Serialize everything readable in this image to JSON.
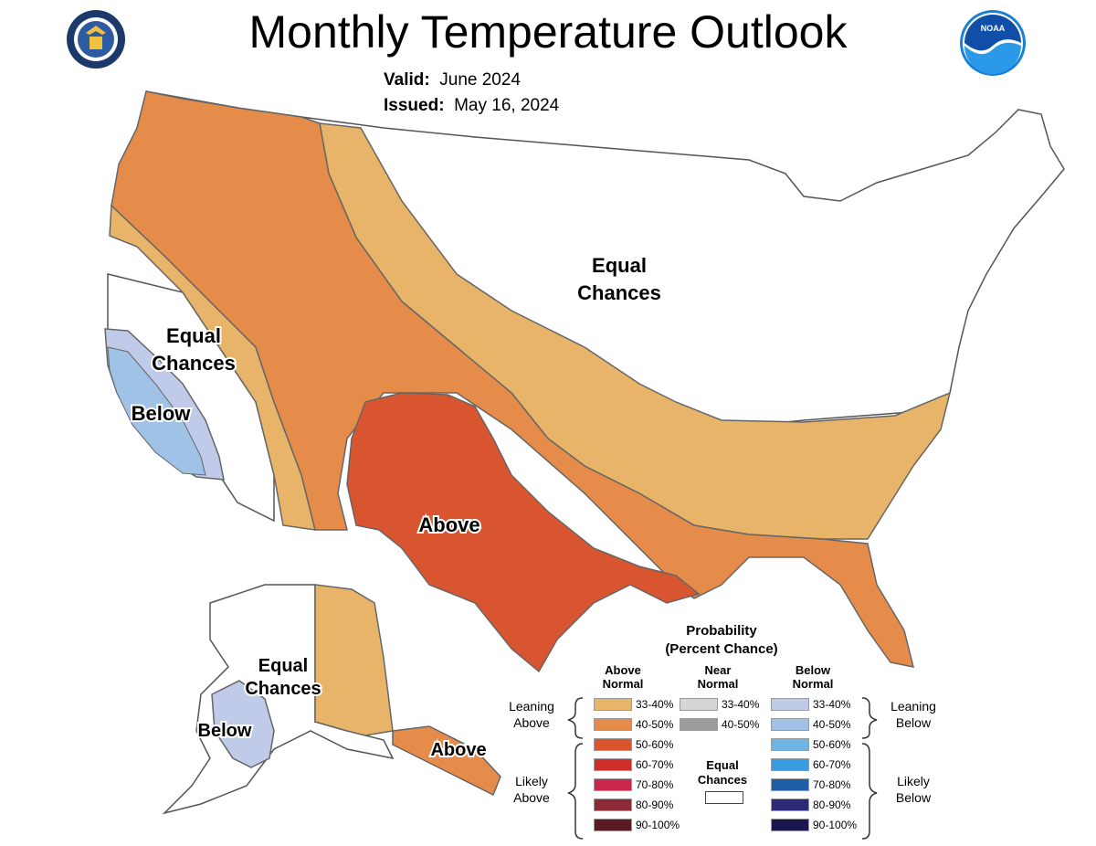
{
  "header": {
    "title": "Monthly Temperature Outlook",
    "valid_label": "Valid:",
    "valid_value": "June 2024",
    "issued_label": "Issued:",
    "issued_value": "May 16, 2024",
    "left_logo_icon": "department-of-commerce-seal-icon",
    "right_logo_icon": "noaa-logo-icon",
    "right_logo_text": "NOAA"
  },
  "map": {
    "labels": {
      "equal_chances_central_1": "Equal",
      "equal_chances_central_2": "Chances",
      "equal_chances_west_1": "Equal",
      "equal_chances_west_2": "Chances",
      "below_west": "Below",
      "above_south": "Above",
      "equal_chances_alaska_1": "Equal",
      "equal_chances_alaska_2": "Chances",
      "below_alaska": "Below",
      "above_alaska": "Above"
    },
    "colors": {
      "above_33_40": "#e8b46a",
      "above_40_50": "#e58c4a",
      "above_50_60": "#d9552f",
      "below_33_40": "#bfcbe8",
      "below_40_50": "#9fc2e6",
      "equal_chances": "#ffffff"
    }
  },
  "legend": {
    "title_1": "Probability",
    "title_2": "(Percent Chance)",
    "above_header_1": "Above",
    "above_header_2": "Normal",
    "near_header_1": "Near",
    "near_header_2": "Normal",
    "below_header_1": "Below",
    "below_header_2": "Normal",
    "above": [
      {
        "label": "33-40%",
        "color": "#e8b46a"
      },
      {
        "label": "40-50%",
        "color": "#e58c4a"
      },
      {
        "label": "50-60%",
        "color": "#d9552f"
      },
      {
        "label": "60-70%",
        "color": "#cf2f2a"
      },
      {
        "label": "70-80%",
        "color": "#c9264a"
      },
      {
        "label": "80-90%",
        "color": "#8e2a36"
      },
      {
        "label": "90-100%",
        "color": "#5c1a22"
      }
    ],
    "near": [
      {
        "label": "33-40%",
        "color": "#d6d6d6"
      },
      {
        "label": "40-50%",
        "color": "#9c9c9c"
      }
    ],
    "below": [
      {
        "label": "33-40%",
        "color": "#bfcbe8"
      },
      {
        "label": "40-50%",
        "color": "#9fc2e6"
      },
      {
        "label": "50-60%",
        "color": "#72b4e6"
      },
      {
        "label": "60-70%",
        "color": "#3a9ce0"
      },
      {
        "label": "70-80%",
        "color": "#1f5ea8"
      },
      {
        "label": "80-90%",
        "color": "#2e2a78"
      },
      {
        "label": "90-100%",
        "color": "#1a1650"
      }
    ],
    "equal_chances_1": "Equal",
    "equal_chances_2": "Chances",
    "leaning_above_1": "Leaning",
    "leaning_above_2": "Above",
    "likely_above_1": "Likely",
    "likely_above_2": "Above",
    "leaning_below_1": "Leaning",
    "leaning_below_2": "Below",
    "likely_below_1": "Likely",
    "likely_below_2": "Below"
  }
}
